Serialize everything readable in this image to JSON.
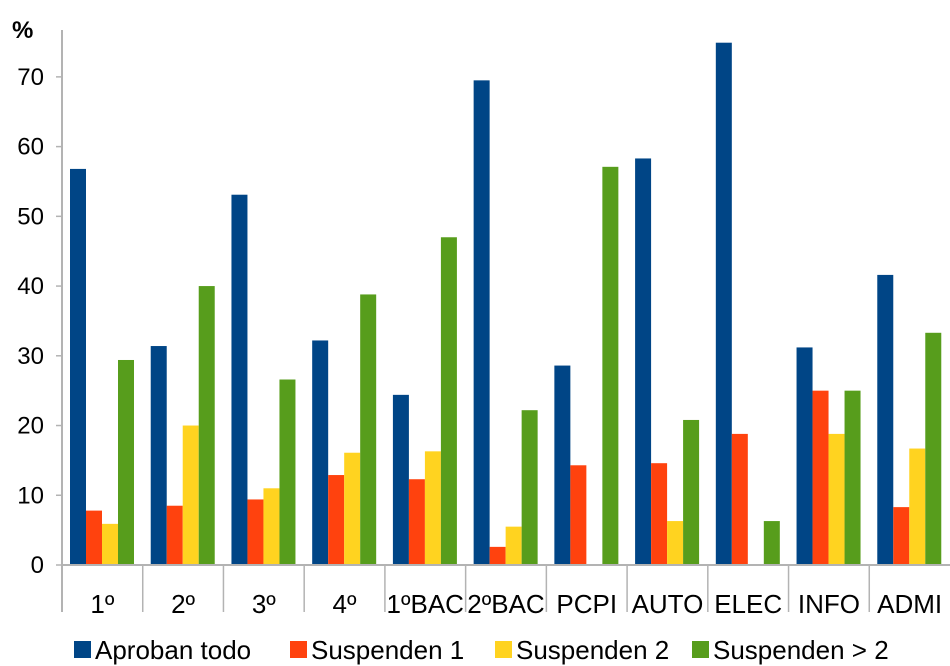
{
  "chart_data": {
    "type": "bar",
    "ylabel": "%",
    "ylim": [
      0,
      75
    ],
    "yticks": [
      0,
      10,
      20,
      30,
      40,
      50,
      60,
      70
    ],
    "grid": false,
    "legend_position": "bottom",
    "categories": [
      "1º",
      "2º",
      "3º",
      "4º",
      "1ºBAC",
      "2ºBAC",
      "PCPI",
      "AUTO",
      "ELEC",
      "INFO",
      "ADMI"
    ],
    "series": [
      {
        "name": "Aproban todo",
        "color": "#004586",
        "values": [
          56.8,
          31.4,
          53.1,
          32.2,
          24.4,
          69.5,
          28.6,
          58.3,
          74.9,
          31.2,
          41.6
        ]
      },
      {
        "name": "Suspenden 1",
        "color": "#ff420e",
        "values": [
          7.8,
          8.5,
          9.4,
          12.9,
          12.3,
          2.6,
          14.3,
          14.6,
          18.8,
          25.0,
          8.3
        ]
      },
      {
        "name": "Suspenden 2",
        "color": "#ffd320",
        "values": [
          5.9,
          20.0,
          11.0,
          16.1,
          16.3,
          5.5,
          0,
          6.3,
          0,
          18.8,
          16.7
        ]
      },
      {
        "name": "Suspenden > 2",
        "color": "#579d1c",
        "values": [
          29.4,
          40.0,
          26.6,
          38.8,
          47.0,
          22.2,
          57.1,
          20.8,
          6.3,
          25.0,
          33.3
        ]
      }
    ]
  }
}
